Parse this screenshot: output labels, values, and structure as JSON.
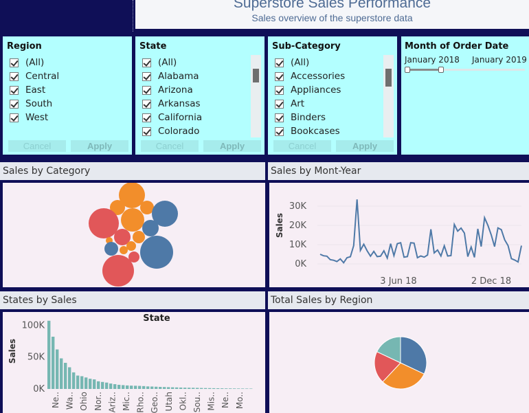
{
  "header": {
    "title": "Superstore Sales Performance",
    "subtitle": "Sales overview of the superstore data"
  },
  "filters": {
    "region": {
      "title": "Region",
      "options": [
        "(All)",
        "Central",
        "East",
        "South",
        "West"
      ],
      "cancel": "Cancel",
      "apply": "Apply"
    },
    "state": {
      "title": "State",
      "options": [
        "(All)",
        "Alabama",
        "Arizona",
        "Arkansas",
        "California",
        "Colorado"
      ],
      "cancel": "Cancel",
      "apply": "Apply"
    },
    "subcategory": {
      "title": "Sub-Category",
      "options": [
        "(All)",
        "Accessories",
        "Appliances",
        "Art",
        "Binders",
        "Bookcases"
      ],
      "cancel": "Cancel",
      "apply": "Apply"
    },
    "date": {
      "title": "Month of Order Date",
      "start": "January 2018",
      "end": "January 2019"
    }
  },
  "panels": {
    "category": {
      "title": "Sales by Category"
    },
    "month": {
      "title": "Sales by Mont-Year"
    },
    "states": {
      "title": "States by Sales"
    },
    "region": {
      "title": "Total Sales by Region"
    }
  },
  "colors": {
    "blue": "#4e79a7",
    "orange": "#f28e2b",
    "red": "#e15759",
    "teal": "#76b7b2",
    "line": "#4e79a7"
  },
  "chart_data": [
    {
      "type": "scatter",
      "name": "packed-bubbles",
      "title": "",
      "colors": [
        "orange",
        "blue",
        "red"
      ]
    },
    {
      "type": "line",
      "title": "",
      "ylabel": "Sales",
      "ylim": [
        0,
        35000
      ],
      "yticks": [
        "0K",
        "10K",
        "20K",
        "30K"
      ],
      "xticks": [
        "3 Jun 18",
        "2 Dec 18"
      ],
      "values": [
        5000,
        4200,
        4000,
        2200,
        1900,
        1200,
        2600,
        600,
        3200,
        3700,
        9500,
        33500,
        7000,
        10200,
        6800,
        4000,
        6500,
        3800,
        4000,
        6800,
        3000,
        10500,
        4300,
        10500,
        11000,
        3500,
        3800,
        11000,
        10800,
        3200,
        4100,
        3500,
        4600,
        18000,
        5700,
        7200,
        4100,
        9400,
        4100,
        4300,
        20500,
        17000,
        18600,
        16000,
        3800,
        8800,
        3400,
        18200,
        9000,
        24000,
        20000,
        15000,
        9000,
        18700,
        17800,
        12500,
        9500,
        2700,
        2000,
        1000,
        9500
      ]
    },
    {
      "type": "bar",
      "title": "State",
      "ylabel": "Sales",
      "ylim": [
        0,
        110000
      ],
      "yticks": [
        "0K",
        "50K",
        "100K"
      ],
      "tick_labels": [
        "Ne..",
        "Wa..",
        "Ohio",
        "Nor..",
        "Ariz..",
        "Mic..",
        "Rho..",
        "Geo..",
        "Utah",
        "Okl..",
        "Sou..",
        "Mis..",
        "Ne..",
        "Mo.."
      ],
      "values": [
        107000,
        82000,
        62000,
        48000,
        41000,
        34000,
        26000,
        21000,
        20000,
        18000,
        16000,
        15000,
        12000,
        11000,
        10000,
        8500,
        7500,
        6500,
        6000,
        5500,
        5200,
        5000,
        4800,
        4500,
        4000,
        3800,
        3500,
        3200,
        3000,
        2800,
        2600,
        2400,
        2200,
        2000,
        1900,
        1800,
        1700,
        1500,
        1400,
        1300,
        1200,
        1100,
        1000,
        900,
        850,
        800,
        750,
        700,
        650,
        600
      ]
    },
    {
      "type": "pie",
      "title": "",
      "values": [
        32,
        30,
        20,
        18
      ],
      "colors": [
        "blue",
        "orange",
        "red",
        "teal"
      ]
    }
  ]
}
